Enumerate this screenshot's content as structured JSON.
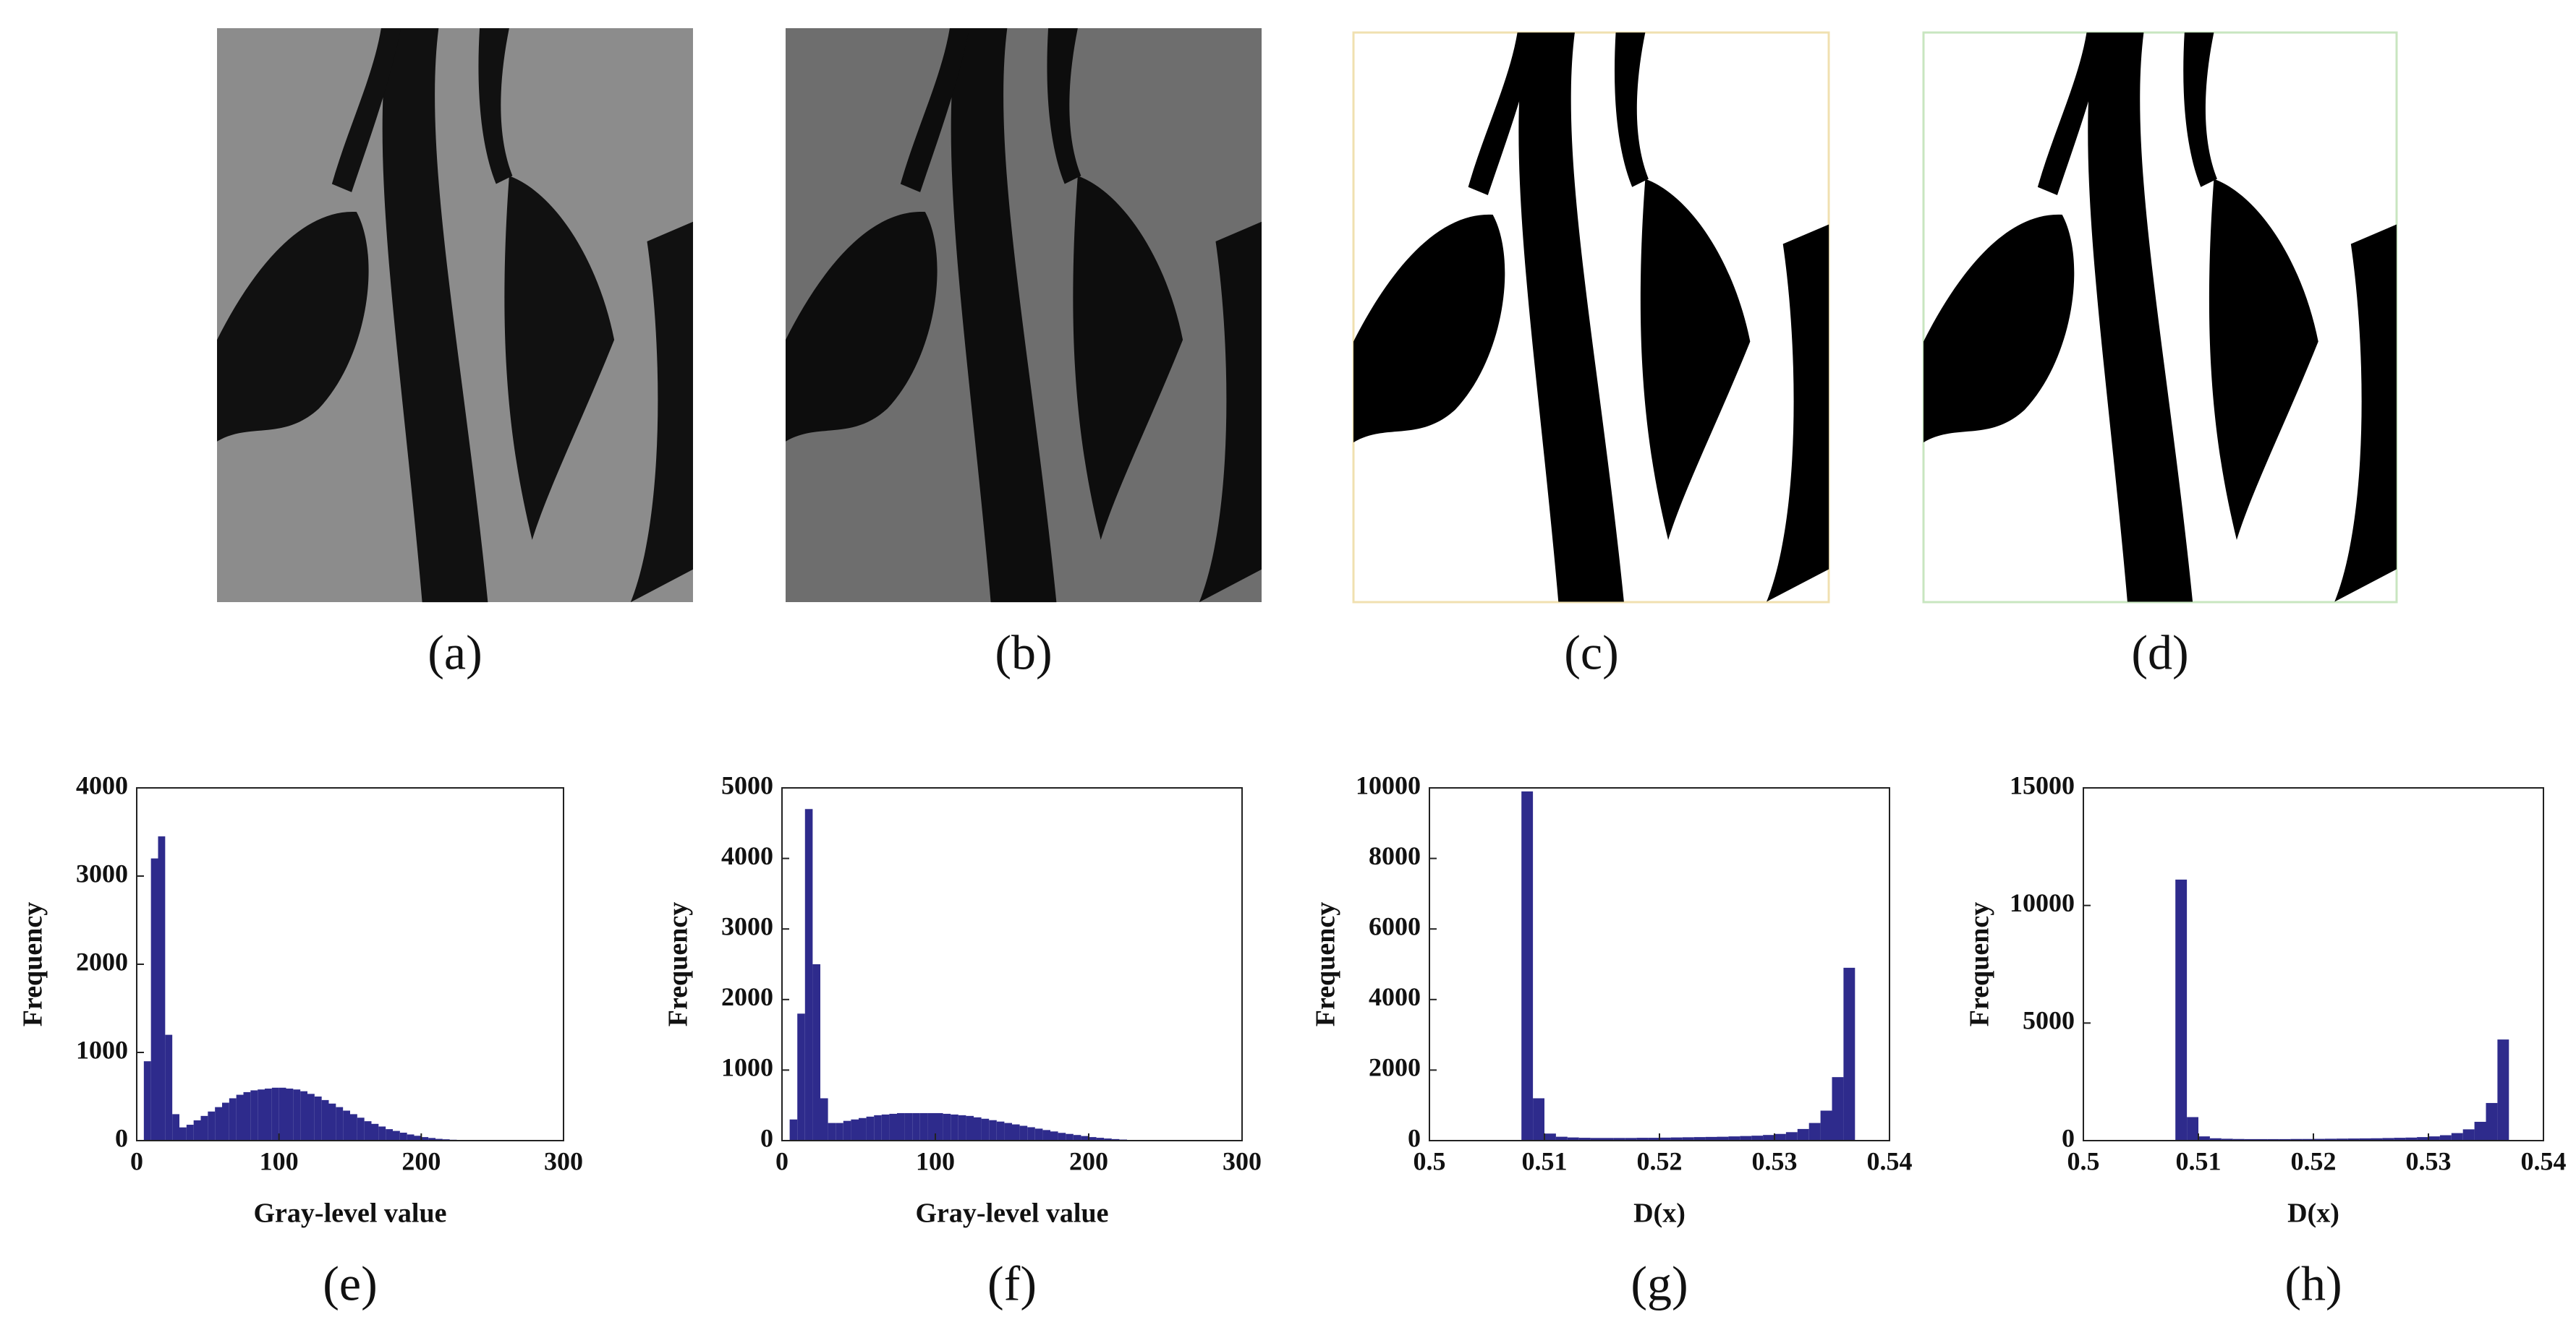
{
  "images": [
    {
      "caption": "(a)"
    },
    {
      "caption": "(b)"
    },
    {
      "caption": "(c)"
    },
    {
      "caption": "(d)"
    }
  ],
  "chart_data": [
    {
      "type": "histogram",
      "caption": "(e)",
      "xlabel": "Gray-level value",
      "ylabel": "Frequency",
      "color": "#2e2b8c",
      "xlim": [
        0,
        300
      ],
      "xticks": [
        0,
        100,
        200,
        300
      ],
      "ylim": [
        0,
        4000
      ],
      "yticks": [
        0,
        1000,
        2000,
        3000,
        4000
      ],
      "bins": [
        5,
        10,
        15,
        20,
        25,
        30,
        35,
        40,
        45,
        50,
        55,
        60,
        65,
        70,
        75,
        80,
        85,
        90,
        95,
        100,
        105,
        110,
        115,
        120,
        125,
        130,
        135,
        140,
        145,
        150,
        155,
        160,
        165,
        170,
        175,
        180,
        185,
        190,
        195,
        200,
        205,
        210,
        215,
        220,
        225,
        230,
        235,
        240,
        245,
        250
      ],
      "counts": [
        900,
        3200,
        3450,
        1200,
        300,
        150,
        180,
        230,
        280,
        330,
        380,
        430,
        480,
        520,
        550,
        570,
        580,
        590,
        600,
        600,
        590,
        580,
        560,
        530,
        500,
        460,
        420,
        380,
        340,
        300,
        260,
        220,
        190,
        160,
        130,
        110,
        90,
        70,
        55,
        40,
        30,
        20,
        15,
        10,
        6,
        4,
        2,
        1,
        1
      ]
    },
    {
      "type": "histogram",
      "caption": "(f)",
      "xlabel": "Gray-level value",
      "ylabel": "Frequency",
      "color": "#2e2b8c",
      "xlim": [
        0,
        300
      ],
      "xticks": [
        0,
        100,
        200,
        300
      ],
      "ylim": [
        0,
        5000
      ],
      "yticks": [
        0,
        1000,
        2000,
        3000,
        4000,
        5000
      ],
      "bins": [
        5,
        10,
        15,
        20,
        25,
        30,
        35,
        40,
        45,
        50,
        55,
        60,
        65,
        70,
        75,
        80,
        85,
        90,
        95,
        100,
        105,
        110,
        115,
        120,
        125,
        130,
        135,
        140,
        145,
        150,
        155,
        160,
        165,
        170,
        175,
        180,
        185,
        190,
        195,
        200,
        205,
        210,
        215,
        220,
        225,
        230,
        235,
        240,
        245,
        250
      ],
      "counts": [
        300,
        1800,
        4700,
        2500,
        600,
        250,
        250,
        280,
        300,
        320,
        340,
        360,
        370,
        380,
        390,
        390,
        390,
        390,
        390,
        390,
        380,
        370,
        360,
        350,
        330,
        310,
        290,
        270,
        250,
        230,
        210,
        190,
        170,
        150,
        130,
        110,
        95,
        80,
        65,
        50,
        40,
        30,
        22,
        15,
        10,
        6,
        4,
        2,
        1
      ]
    },
    {
      "type": "histogram",
      "caption": "(g)",
      "xlabel": "D(x)",
      "ylabel": "Frequency",
      "color": "#2e2b8c",
      "xlim": [
        0.5,
        0.54
      ],
      "xticks": [
        0.5,
        0.51,
        0.52,
        0.53,
        0.54
      ],
      "ylim": [
        0,
        10000
      ],
      "yticks": [
        0,
        2000,
        4000,
        6000,
        8000,
        10000
      ],
      "bins": [
        0.508,
        0.509,
        0.51,
        0.511,
        0.512,
        0.513,
        0.514,
        0.515,
        0.516,
        0.517,
        0.518,
        0.519,
        0.52,
        0.521,
        0.522,
        0.523,
        0.524,
        0.525,
        0.526,
        0.527,
        0.528,
        0.529,
        0.53,
        0.531,
        0.532,
        0.533,
        0.534,
        0.535,
        0.536,
        0.537
      ],
      "counts": [
        9900,
        1200,
        200,
        110,
        90,
        80,
        75,
        75,
        75,
        75,
        80,
        80,
        85,
        90,
        95,
        100,
        105,
        110,
        120,
        130,
        140,
        160,
        190,
        240,
        330,
        500,
        850,
        1800,
        4900
      ]
    },
    {
      "type": "histogram",
      "caption": "(h)",
      "xlabel": "D(x)",
      "ylabel": "Frequency",
      "color": "#2e2b8c",
      "xlim": [
        0.5,
        0.54
      ],
      "xticks": [
        0.5,
        0.51,
        0.52,
        0.53,
        0.54
      ],
      "ylim": [
        0,
        15000
      ],
      "yticks": [
        0,
        5000,
        10000,
        15000
      ],
      "bins": [
        0.508,
        0.509,
        0.51,
        0.511,
        0.512,
        0.513,
        0.514,
        0.515,
        0.516,
        0.517,
        0.518,
        0.519,
        0.52,
        0.521,
        0.522,
        0.523,
        0.524,
        0.525,
        0.526,
        0.527,
        0.528,
        0.529,
        0.53,
        0.531,
        0.532,
        0.533,
        0.534,
        0.535,
        0.536,
        0.537
      ],
      "counts": [
        11100,
        1000,
        180,
        100,
        80,
        70,
        65,
        65,
        65,
        65,
        70,
        70,
        75,
        80,
        85,
        90,
        95,
        100,
        110,
        120,
        130,
        150,
        180,
        230,
        320,
        480,
        800,
        1600,
        4300
      ]
    }
  ]
}
